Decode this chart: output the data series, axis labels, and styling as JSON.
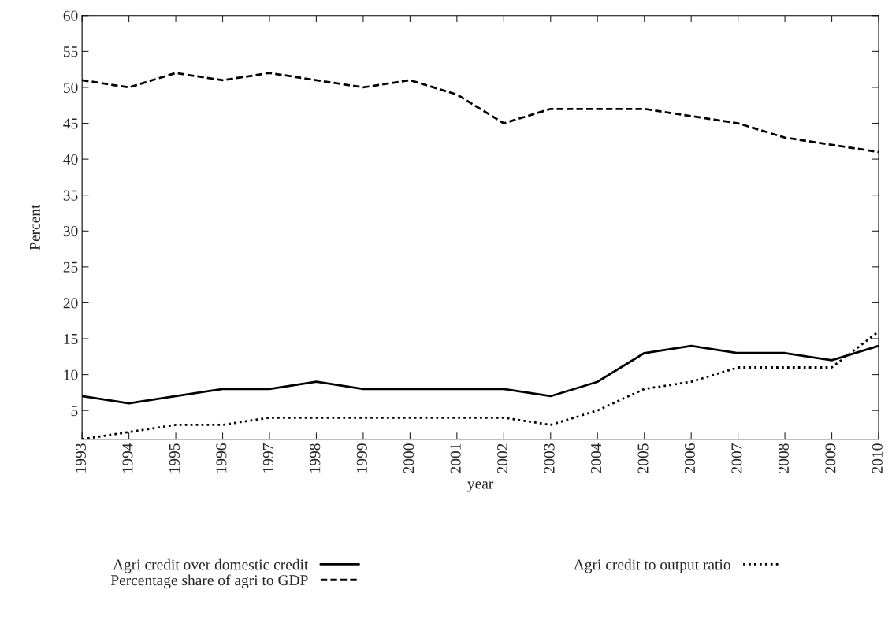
{
  "chart_data": {
    "type": "line",
    "xlabel": "year",
    "ylabel": "Percent",
    "x": [
      1993,
      1994,
      1995,
      1996,
      1997,
      1998,
      1999,
      2000,
      2001,
      2002,
      2003,
      2004,
      2005,
      2006,
      2007,
      2008,
      2009,
      2010
    ],
    "series": [
      {
        "name": "Agri credit over domestic credit",
        "color": "#000000",
        "line_style": "solid",
        "values": [
          7,
          6,
          7,
          8,
          8,
          9,
          8,
          8,
          8,
          8,
          7,
          9,
          13,
          14,
          13,
          13,
          12,
          14
        ]
      },
      {
        "name": "Percentage share of agri to GDP",
        "color": "#000000",
        "line_style": "dashed",
        "values": [
          51,
          50,
          52,
          51,
          52,
          51,
          50,
          51,
          49,
          45,
          47,
          47,
          47,
          46,
          45,
          43,
          42,
          41
        ]
      },
      {
        "name": "Agri credit to output ratio",
        "color": "#000000",
        "line_style": "dotted",
        "values": [
          1,
          2,
          3,
          3,
          4,
          4,
          4,
          4,
          4,
          4,
          3,
          5,
          8,
          9,
          11,
          11,
          11,
          16
        ]
      }
    ],
    "xlim": [
      1993,
      2010
    ],
    "xticks": [
      1993,
      1994,
      1995,
      1996,
      1997,
      1998,
      1999,
      2000,
      2001,
      2002,
      2003,
      2004,
      2005,
      2006,
      2007,
      2008,
      2009,
      2010
    ],
    "ylim": [
      1,
      60
    ],
    "yticks": [
      5,
      10,
      15,
      20,
      25,
      30,
      35,
      40,
      45,
      50,
      55,
      60
    ],
    "grid": false,
    "legend": "bottom",
    "marker": "none"
  }
}
